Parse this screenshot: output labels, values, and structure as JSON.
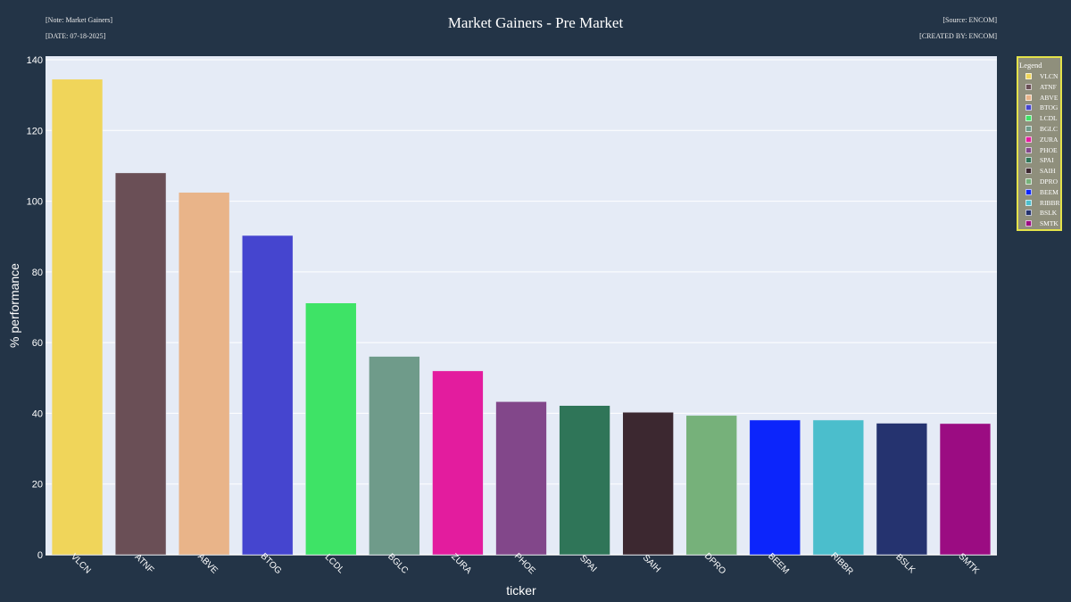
{
  "header": {
    "note": "[Note: Market Gainers]",
    "date": "[DATE: 07-18-2025]",
    "title": "Market Gainers - Pre Market",
    "source": "[Source: ENCOM]",
    "created_by": "[CREATED BY: ENCOM]"
  },
  "legend": {
    "title": "Legend"
  },
  "chart_data": {
    "type": "bar",
    "title": "Market Gainers - Pre Market",
    "xlabel": "ticker",
    "ylabel": "% performance",
    "ylim": [
      0,
      140
    ],
    "yticks": [
      0,
      20,
      40,
      60,
      80,
      100,
      120,
      140
    ],
    "grid": true,
    "legend_position": "right",
    "categories": [
      "VLCN",
      "ATNF",
      "ABVE",
      "BTOG",
      "LCDL",
      "BGLC",
      "ZURA",
      "PHOE",
      "SPAI",
      "SAIH",
      "DPRO",
      "BEEM",
      "RIBBR",
      "BSLK",
      "SMTK"
    ],
    "values": [
      134.5,
      108,
      102.5,
      90.3,
      71.2,
      56.1,
      52,
      43.3,
      42.2,
      40.3,
      39.4,
      38.1,
      38.1,
      37.2,
      37.1
    ],
    "colors": [
      "#f0d55a",
      "#6a4f56",
      "#e9b489",
      "#4545cf",
      "#3ee366",
      "#6f9b8a",
      "#e31c9e",
      "#82478a",
      "#2f7558",
      "#3c2830",
      "#76b17a",
      "#0c25fb",
      "#4bbecc",
      "#25336f",
      "#9b0c82"
    ]
  }
}
